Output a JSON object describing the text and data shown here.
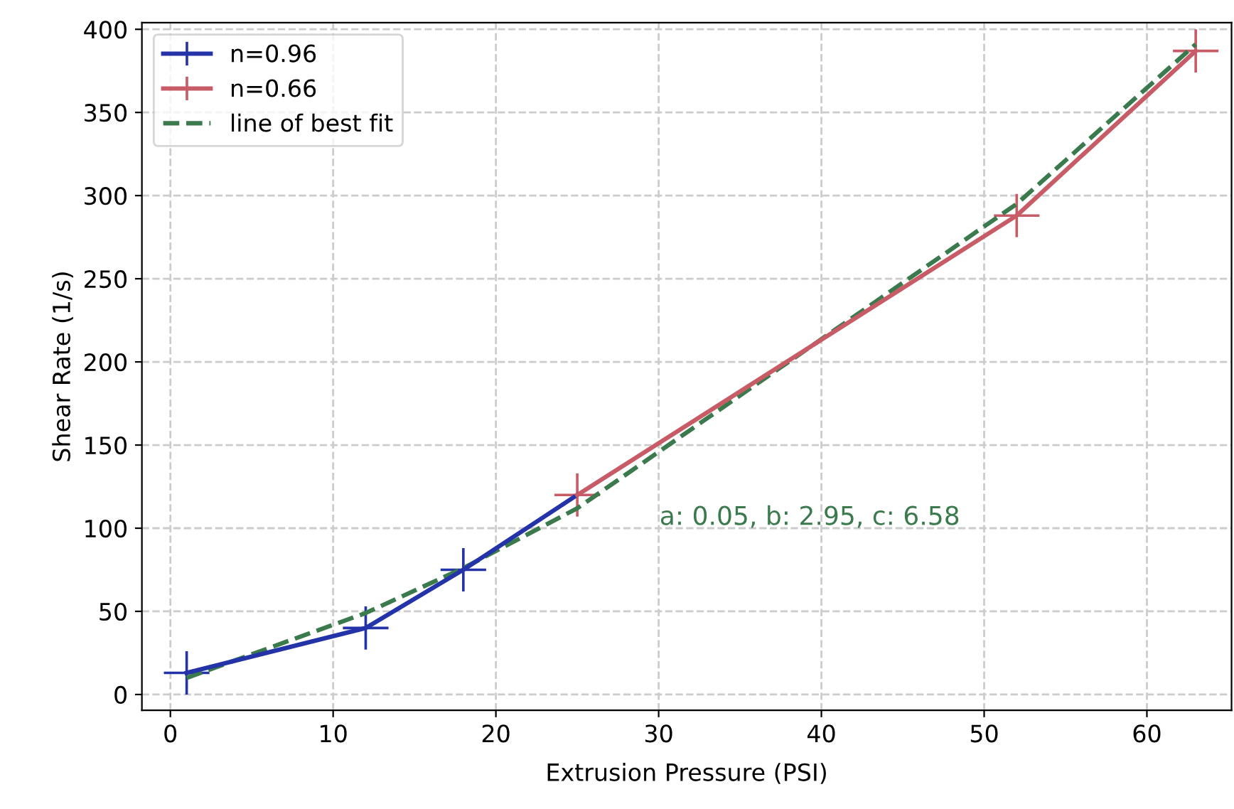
{
  "chart_data": {
    "type": "line",
    "xlabel": "Extrusion Pressure (PSI)",
    "ylabel": "Shear Rate (1/s)",
    "series": [
      {
        "name": "n=0.96",
        "color": "#2433a8",
        "x": [
          1,
          12,
          18,
          25
        ],
        "values": [
          13,
          40,
          75,
          120
        ],
        "errors": [
          13,
          13,
          13,
          null
        ],
        "xerrors": [
          1.4,
          1.4,
          1.4,
          null
        ],
        "line_style": "solid"
      },
      {
        "name": "n=0.66",
        "color": "#c75b66",
        "x": [
          25,
          52,
          63
        ],
        "values": [
          120,
          288,
          387
        ],
        "errors": [
          13,
          13,
          13
        ],
        "xerrors": [
          1.4,
          1.4,
          1.4
        ],
        "line_style": "solid"
      },
      {
        "name": "line of best fit",
        "color": "#3a7a4c",
        "x": [
          1,
          12,
          18,
          25,
          52,
          63
        ],
        "values": [
          10,
          49,
          76,
          112,
          295,
          391
        ],
        "line_style": "dashed"
      }
    ],
    "xlim": [
      -1.75,
      65.2
    ],
    "ylim": [
      -9.5,
      404
    ],
    "xticks": [
      0,
      10,
      20,
      30,
      40,
      50,
      60
    ],
    "yticks": [
      0,
      50,
      100,
      150,
      200,
      250,
      300,
      350,
      400
    ],
    "grid": true,
    "legend": "top left",
    "annotations": [
      "a: 0.05, b: 2.95, c: 6.58"
    ]
  }
}
